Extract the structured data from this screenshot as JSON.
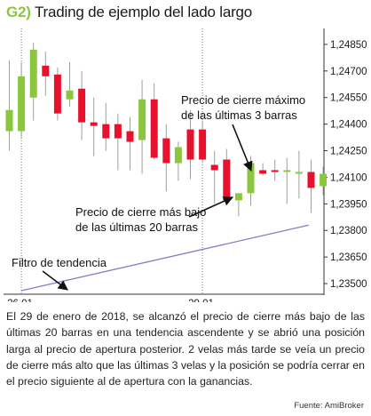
{
  "title": {
    "tag": "G2)",
    "text": "Trading de ejemplo del lado largo"
  },
  "chart_data": {
    "type": "candlestick",
    "x_labels": [
      {
        "index": 1,
        "label": "26.01."
      },
      {
        "index": 16,
        "label": "29.01."
      }
    ],
    "y_ticks": [
      "1,24850",
      "1,24700",
      "1,24550",
      "1,24400",
      "1,24250",
      "1,24100",
      "1,23950",
      "1,23800",
      "1,23650",
      "1,23500"
    ],
    "ylim": [
      1.2344,
      1.2494
    ],
    "candles": [
      {
        "o": 1.2436,
        "h": 1.2476,
        "l": 1.2425,
        "c": 1.2448
      },
      {
        "o": 1.2436,
        "h": 1.2475,
        "l": 1.2432,
        "c": 1.2467
      },
      {
        "o": 1.2455,
        "h": 1.2486,
        "l": 1.2442,
        "c": 1.2482
      },
      {
        "o": 1.2473,
        "h": 1.2481,
        "l": 1.2456,
        "c": 1.2467
      },
      {
        "o": 1.2468,
        "h": 1.2472,
        "l": 1.2442,
        "c": 1.2446
      },
      {
        "o": 1.2454,
        "h": 1.2475,
        "l": 1.245,
        "c": 1.2459
      },
      {
        "o": 1.246,
        "h": 1.247,
        "l": 1.2431,
        "c": 1.2441
      },
      {
        "o": 1.2441,
        "h": 1.2455,
        "l": 1.2422,
        "c": 1.2439
      },
      {
        "o": 1.244,
        "h": 1.2452,
        "l": 1.2425,
        "c": 1.2432
      },
      {
        "o": 1.244,
        "h": 1.2446,
        "l": 1.2414,
        "c": 1.2432
      },
      {
        "o": 1.2436,
        "h": 1.2444,
        "l": 1.2414,
        "c": 1.243
      },
      {
        "o": 1.2431,
        "h": 1.2465,
        "l": 1.2412,
        "c": 1.2454
      },
      {
        "o": 1.2454,
        "h": 1.2463,
        "l": 1.242,
        "c": 1.2421
      },
      {
        "o": 1.2432,
        "h": 1.244,
        "l": 1.2402,
        "c": 1.2418
      },
      {
        "o": 1.2418,
        "h": 1.243,
        "l": 1.2408,
        "c": 1.2427
      },
      {
        "o": 1.2437,
        "h": 1.2448,
        "l": 1.2409,
        "c": 1.242
      },
      {
        "o": 1.2437,
        "h": 1.2442,
        "l": 1.2418,
        "c": 1.242
      },
      {
        "o": 1.2417,
        "h": 1.2425,
        "l": 1.2395,
        "c": 1.2414
      },
      {
        "o": 1.242,
        "h": 1.2426,
        "l": 1.2396,
        "c": 1.2397
      },
      {
        "o": 1.2397,
        "h": 1.2401,
        "l": 1.2388,
        "c": 1.2401
      },
      {
        "o": 1.2401,
        "h": 1.2422,
        "l": 1.2394,
        "c": 1.2418
      },
      {
        "o": 1.2414,
        "h": 1.2418,
        "l": 1.2411,
        "c": 1.2412
      },
      {
        "o": 1.2414,
        "h": 1.242,
        "l": 1.2408,
        "c": 1.2413
      },
      {
        "o": 1.2413,
        "h": 1.2421,
        "l": 1.2395,
        "c": 1.2414
      },
      {
        "o": 1.2413,
        "h": 1.2425,
        "l": 1.2398,
        "c": 1.2413
      },
      {
        "o": 1.2413,
        "h": 1.242,
        "l": 1.239,
        "c": 1.2404
      },
      {
        "o": 1.2405,
        "h": 1.2416,
        "l": 1.24,
        "c": 1.2412
      }
    ],
    "trend_filter": [
      {
        "index": 1,
        "value": 1.2346
      },
      {
        "index": 24.8,
        "value": 1.2383
      }
    ],
    "colors": {
      "up": "#8cc63f",
      "down": "#e8112d",
      "wick": "#9aa39a",
      "trend": "#8080c8",
      "arrow": "#111111"
    }
  },
  "annotations": {
    "max_close": [
      "Precio de cierre máximo",
      "de las últimas 3 barras"
    ],
    "min_close": [
      "Precio de cierre más bajo",
      "de las últimas 20 barras"
    ],
    "trend": "Filtro de tendencia"
  },
  "description": "El 29 de enero de 2018, se alcanzó el precio de cierre más bajo de las últimas 20 barras en una tendencia ascendente y se abrió una posición larga al precio de apertura posterior. 2 velas más tarde se veía un precio de cierre más alto que las últimas 3 velas y la posición se podría cerrar en el precio siguiente al de apertura con la ganancias.",
  "source": "Fuente: AmiBroker"
}
